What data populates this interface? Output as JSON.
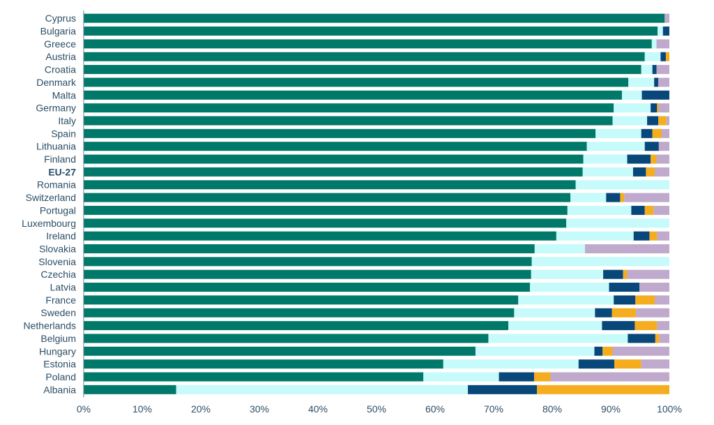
{
  "chart_data": {
    "type": "bar",
    "orientation": "horizontal",
    "stacked": true,
    "normalized": true,
    "xlim": [
      0,
      100
    ],
    "x_ticks": [
      "0%",
      "10%",
      "20%",
      "30%",
      "40%",
      "50%",
      "60%",
      "70%",
      "80%",
      "90%",
      "100%"
    ],
    "grid": false,
    "legend": "none",
    "highlighted_category": "EU-27",
    "categories": [
      "Cyprus",
      "Bulgaria",
      "Greece",
      "Austria",
      "Croatia",
      "Denmark",
      "Malta",
      "Germany",
      "Italy",
      "Spain",
      "Lithuania",
      "Finland",
      "EU-27",
      "Romania",
      "Switzerland",
      "Portugal",
      "Luxembourg",
      "Ireland",
      "Slovakia",
      "Slovenia",
      "Czechia",
      "Latvia",
      "France",
      "Sweden",
      "Netherlands",
      "Belgium",
      "Hungary",
      "Estonia",
      "Poland",
      "Albania"
    ],
    "series": [
      {
        "color": "#00796b",
        "values": [
          99.2,
          98.0,
          97.0,
          95.8,
          95.2,
          93.0,
          91.9,
          90.5,
          90.3,
          87.4,
          85.9,
          85.3,
          85.2,
          84.0,
          83.1,
          82.6,
          82.4,
          80.7,
          77.0,
          76.5,
          76.4,
          76.2,
          74.2,
          73.5,
          72.5,
          69.1,
          66.9,
          61.4,
          58.0,
          15.8
        ]
      },
      {
        "color": "#c7fafa",
        "values": [
          0,
          0.9,
          0.8,
          2.7,
          1.9,
          4.4,
          3.4,
          6.3,
          5.9,
          7.8,
          9.9,
          7.5,
          8.6,
          16.0,
          6.1,
          10.9,
          17.6,
          13.2,
          8.6,
          23.5,
          12.3,
          13.5,
          16.3,
          13.8,
          16.0,
          23.8,
          20.3,
          23.1,
          12.9,
          49.8
        ]
      },
      {
        "color": "#08477a",
        "values": [
          0,
          1.1,
          0,
          0.9,
          0.7,
          0.7,
          4.7,
          1.1,
          1.9,
          1.9,
          2.4,
          4.0,
          2.2,
          0,
          2.4,
          2.3,
          0,
          2.7,
          0,
          0,
          3.4,
          5.2,
          3.7,
          2.9,
          5.6,
          4.7,
          1.4,
          6.1,
          6.0,
          11.8
        ]
      },
      {
        "color": "#f5ad20",
        "values": [
          0,
          0,
          0,
          0.6,
          0,
          0,
          0,
          0.3,
          1.4,
          1.6,
          0,
          1.0,
          1.5,
          0,
          0.7,
          1.5,
          0,
          1.3,
          0,
          0,
          0.7,
          0,
          3.3,
          4.1,
          3.8,
          0.7,
          1.7,
          4.6,
          2.8,
          22.6
        ]
      },
      {
        "color": "#bfa9cc",
        "values": [
          0.8,
          0,
          2.2,
          0,
          2.2,
          1.9,
          0,
          1.8,
          0.5,
          1.3,
          1.8,
          2.2,
          2.5,
          0,
          7.7,
          2.7,
          0,
          2.1,
          14.4,
          0,
          7.2,
          5.1,
          2.5,
          5.7,
          2.1,
          1.7,
          9.7,
          4.8,
          20.3,
          0
        ]
      }
    ]
  }
}
